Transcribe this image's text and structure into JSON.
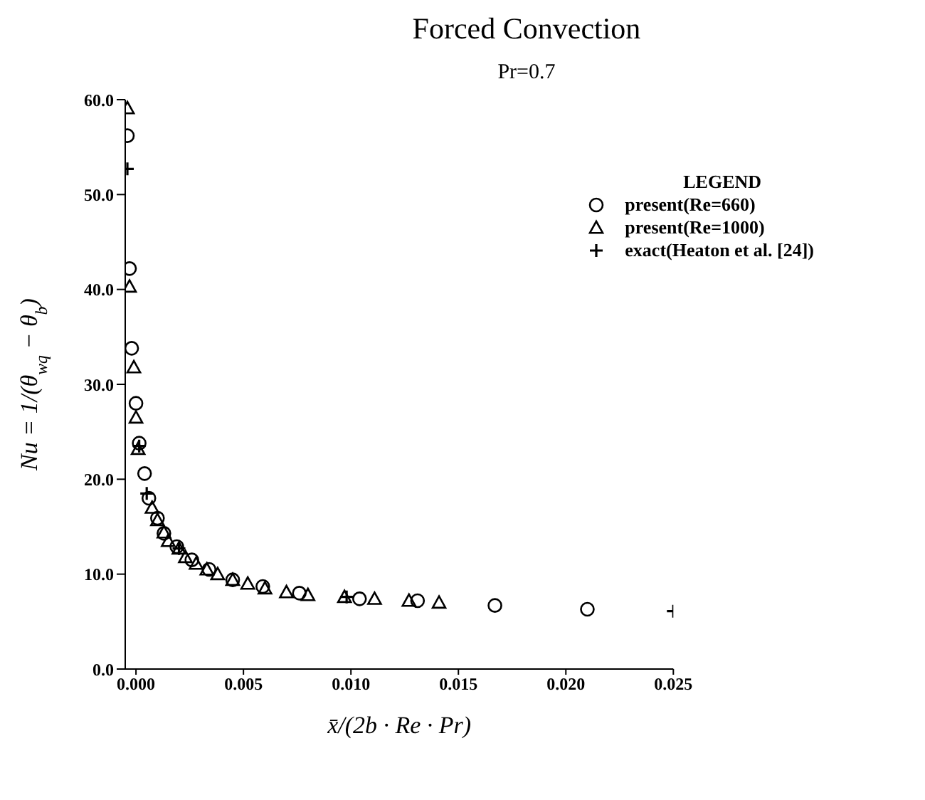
{
  "chart_data": {
    "type": "scatter",
    "title": "Forced Convection",
    "subtitle": "Pr=0.7",
    "xlabel": "x̄/(2b · Re · Pr)",
    "ylabel": "Nu = 1/(θ$_{wq}$ − θ$_{b}$)",
    "legend_title": "LEGEND",
    "legend": "top right",
    "grid": false,
    "xlim": [
      -0.0005,
      0.025
    ],
    "xticks": [
      {
        "value": 0,
        "label": "0.000"
      },
      0.005,
      {
        "value": 0.01,
        "label": "0.010"
      },
      0.015,
      {
        "value": 0.02,
        "label": "0.020"
      },
      0.025
    ],
    "ylim": [
      0,
      60
    ],
    "yticks": [
      {
        "value": 0,
        "label": "0.0"
      },
      {
        "value": 10,
        "label": "10.0"
      },
      {
        "value": 20,
        "label": "20.0"
      },
      {
        "value": 30,
        "label": "30.0"
      },
      {
        "value": 40,
        "label": "40.0"
      },
      {
        "value": 50,
        "label": "50.0"
      },
      {
        "value": 60,
        "label": "60.0"
      }
    ],
    "series": [
      {
        "name": "present(Re=660)",
        "color": "#000000",
        "marker": "circle",
        "x": [
          -0.0004,
          -0.0003,
          -0.0002,
          0.0,
          0.00015,
          0.0004,
          0.0006,
          0.001,
          0.0013,
          0.0019,
          0.0026,
          0.0034,
          0.0045,
          0.0059,
          0.0076,
          0.0104,
          0.0131,
          0.0167,
          0.021
        ],
        "values": [
          56.2,
          42.2,
          33.8,
          28.0,
          23.8,
          20.6,
          18.0,
          15.9,
          14.3,
          12.9,
          11.5,
          10.5,
          9.4,
          8.7,
          8.0,
          7.4,
          7.2,
          6.7,
          6.3
        ]
      },
      {
        "name": "present(Re=1000)",
        "color": "#000000",
        "marker": "triangle",
        "x": [
          -0.0004,
          -0.0003,
          -0.0001,
          0.0,
          0.0001,
          0.00075,
          0.001,
          0.0013,
          0.0015,
          0.002,
          0.0023,
          0.0028,
          0.0033,
          0.0038,
          0.0045,
          0.0052,
          0.006,
          0.007,
          0.008,
          0.0097,
          0.0111,
          0.0127,
          0.0141
        ],
        "values": [
          59.1,
          40.3,
          31.8,
          26.5,
          23.2,
          17.0,
          15.7,
          14.4,
          13.5,
          12.7,
          11.8,
          11.1,
          10.5,
          10.0,
          9.4,
          9.0,
          8.5,
          8.1,
          7.8,
          7.6,
          7.4,
          7.2,
          7.0
        ]
      },
      {
        "name": "exact(Heaton et al. [24])",
        "color": "#000000",
        "marker": "cross",
        "x": [
          -0.0004,
          0.00015,
          0.0005,
          0.002,
          0.0098,
          0.025
        ],
        "values": [
          52.7,
          23.5,
          18.5,
          12.7,
          7.6,
          6.1
        ]
      }
    ]
  }
}
